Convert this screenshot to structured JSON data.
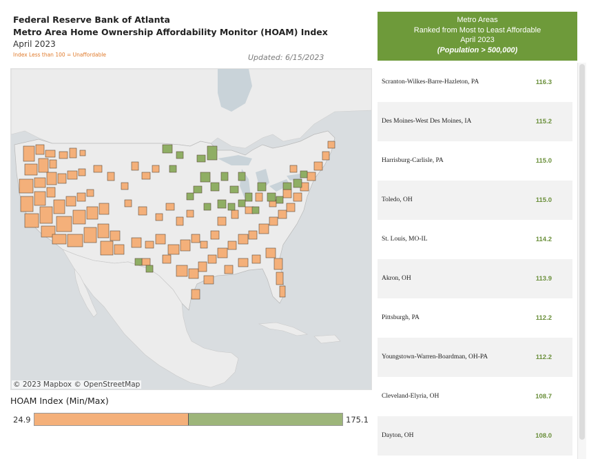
{
  "header": {
    "title": "Federal Reserve Bank of Atlanta",
    "subtitle": "Metro Area Home Ownership Affordability Monitor (HOAM) Index",
    "date": "April 2023",
    "note": "Index Less than 100 = Unaffordable",
    "updated": "Updated: 6/15/2023"
  },
  "map": {
    "credit": "© 2023 Mapbox  © OpenStreetMap",
    "colors": {
      "unaffordable": "#f4b07a",
      "affordable": "#8fae64",
      "land": "#ececec",
      "water": "#c9d3d9",
      "border": "#5a4a3a"
    }
  },
  "legend": {
    "title": "HOAM Index (Min/Max)",
    "min": "24.9",
    "max": "175.1"
  },
  "ranking": {
    "line1": "Metro Areas",
    "line2": "Ranked from Most to Least Affordable",
    "line3": "April 2023",
    "line4": "(Population > 500,000)",
    "value_color": "#6a8f3a",
    "rows": [
      {
        "name": "Scranton-Wilkes-Barre-Hazleton, PA",
        "value": "116.3"
      },
      {
        "name": "Des Moines-West Des Moines, IA",
        "value": "115.2"
      },
      {
        "name": "Harrisburg-Carlisle, PA",
        "value": "115.0"
      },
      {
        "name": "Toledo, OH",
        "value": "115.0"
      },
      {
        "name": "St. Louis, MO-IL",
        "value": "114.2"
      },
      {
        "name": "Akron, OH",
        "value": "113.9"
      },
      {
        "name": "Pittsburgh, PA",
        "value": "112.2"
      },
      {
        "name": "Youngstown-Warren-Boardman, OH-PA",
        "value": "112.2"
      },
      {
        "name": "Cleveland-Elyria, OH",
        "value": "108.7"
      },
      {
        "name": "Dayton, OH",
        "value": "108.0"
      }
    ]
  }
}
